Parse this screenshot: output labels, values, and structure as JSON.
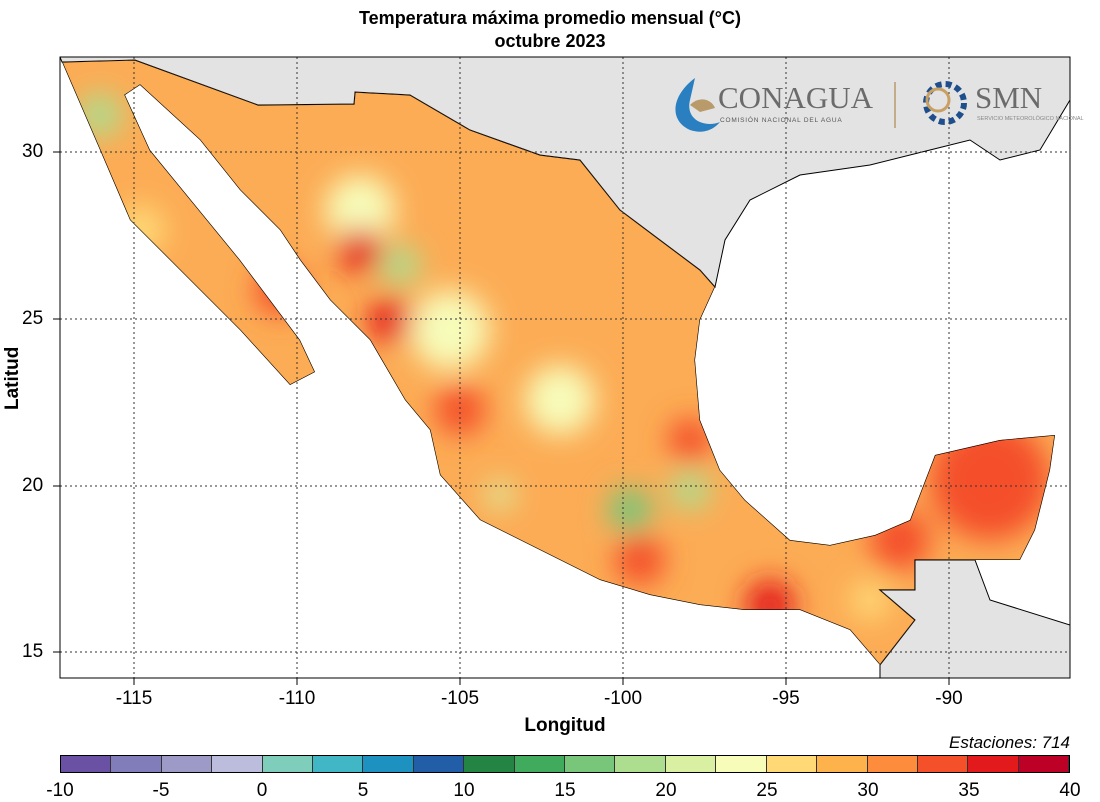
{
  "title": "Temperatura máxima promedio mensual (°C)",
  "subtitle": "octubre 2023",
  "xlabel": "Longitud",
  "ylabel": "Latitud",
  "x_ticks": [
    "-115",
    "-110",
    "-105",
    "-100",
    "-95",
    "-90"
  ],
  "y_ticks": [
    "30",
    "25",
    "20",
    "15"
  ],
  "stations": "Estaciones:  714",
  "logos": {
    "conagua": "CONAGUA",
    "conagua_sub": "COMISIÓN NACIONAL DEL AGUA",
    "smn": "SMN",
    "smn_sub": "SERVICIO METEOROLÓGICO NACIONAL"
  },
  "legend": {
    "labels": [
      "-10",
      "-5",
      "0",
      "5",
      "10",
      "15",
      "20",
      "25",
      "30",
      "35",
      "40"
    ],
    "colors": [
      "#6a51a3",
      "#807dba",
      "#9e9ac8",
      "#bcbddc",
      "#7fcdbb",
      "#41b6c4",
      "#1d91c0",
      "#225ea8",
      "#238443",
      "#41ab5d",
      "#78c679",
      "#addd8e",
      "#d9f0a3",
      "#f7fcb9",
      "#fed976",
      "#feb24c",
      "#fd8d3c",
      "#f4502a",
      "#e31a1c",
      "#bd0026"
    ]
  },
  "colors": {
    "land_other": "#e3e3e3",
    "ocean": "#ffffff",
    "base": "#fcac55"
  }
}
